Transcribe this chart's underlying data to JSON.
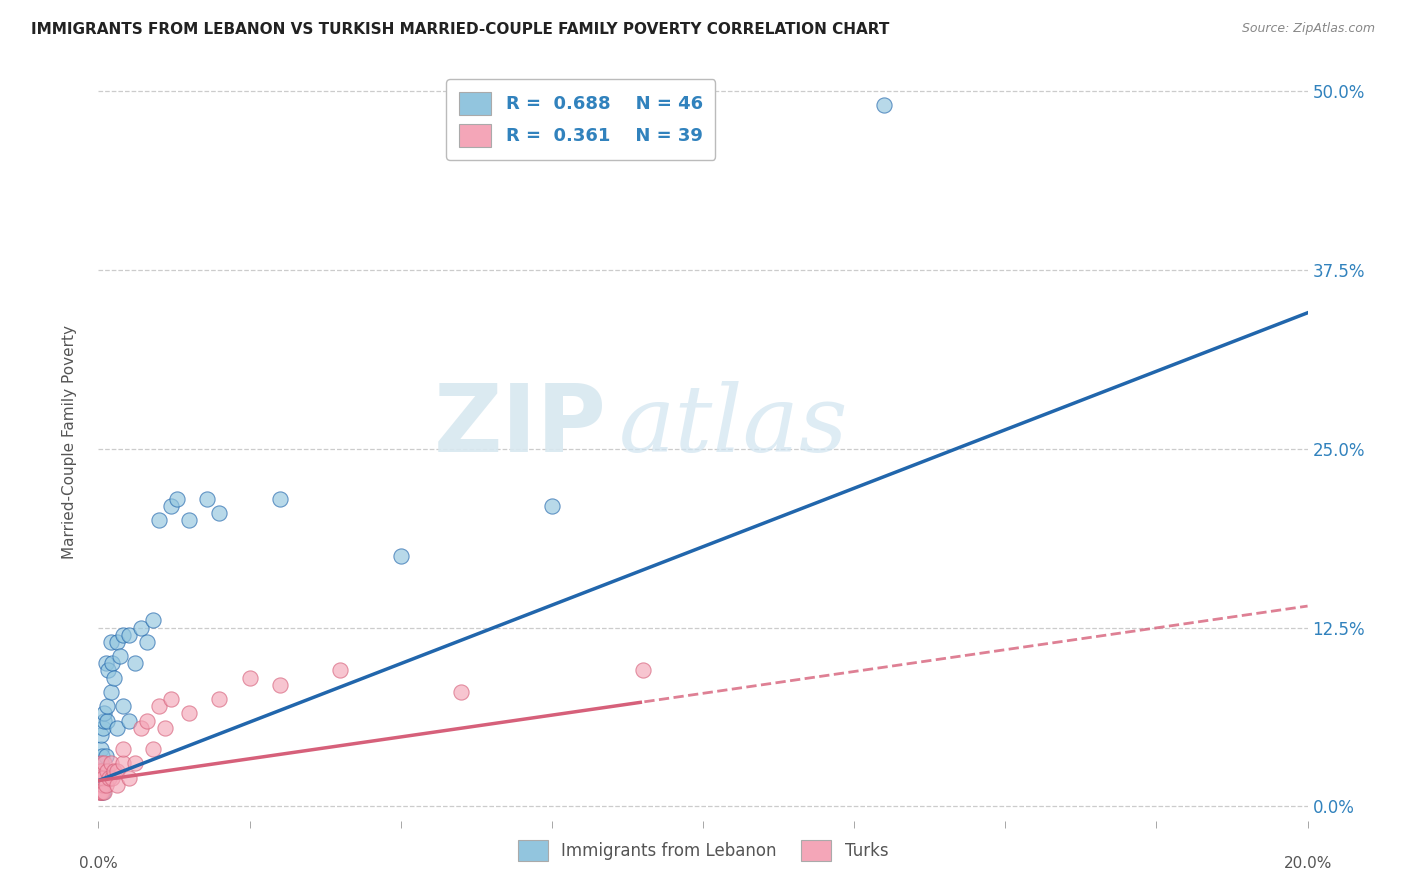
{
  "title": "IMMIGRANTS FROM LEBANON VS TURKISH MARRIED-COUPLE FAMILY POVERTY CORRELATION CHART",
  "source": "Source: ZipAtlas.com",
  "ylabel": "Married-Couple Family Poverty",
  "legend_label1": "Immigrants from Lebanon",
  "legend_label2": "Turks",
  "legend_R1": "R = 0.688",
  "legend_N1": "N = 46",
  "legend_R2": "R = 0.361",
  "legend_N2": "N = 39",
  "watermark_zip": "ZIP",
  "watermark_atlas": "atlas",
  "color_blue": "#92c5de",
  "color_pink": "#f4a6b8",
  "color_blue_line": "#2166ac",
  "color_pink_line": "#d6607a",
  "xmin": 0.0,
  "xmax": 0.2,
  "ymin": -0.01,
  "ymax": 0.52,
  "ytick_vals": [
    0.0,
    0.125,
    0.25,
    0.375,
    0.5
  ],
  "ytick_labels": [
    "0.0%",
    "12.5%",
    "25.0%",
    "37.5%",
    "50.0%"
  ],
  "lebanon_x": [
    0.0002,
    0.0003,
    0.0003,
    0.0004,
    0.0004,
    0.0005,
    0.0005,
    0.0005,
    0.0006,
    0.0006,
    0.0007,
    0.0007,
    0.0008,
    0.0009,
    0.001,
    0.001,
    0.0012,
    0.0013,
    0.0014,
    0.0015,
    0.0016,
    0.002,
    0.002,
    0.0022,
    0.0025,
    0.003,
    0.003,
    0.0035,
    0.004,
    0.004,
    0.005,
    0.005,
    0.006,
    0.007,
    0.008,
    0.009,
    0.01,
    0.012,
    0.013,
    0.015,
    0.018,
    0.02,
    0.03,
    0.05,
    0.075,
    0.13
  ],
  "lebanon_y": [
    0.02,
    0.015,
    0.025,
    0.01,
    0.03,
    0.02,
    0.04,
    0.05,
    0.015,
    0.035,
    0.01,
    0.055,
    0.025,
    0.06,
    0.025,
    0.065,
    0.035,
    0.1,
    0.06,
    0.07,
    0.095,
    0.08,
    0.115,
    0.1,
    0.09,
    0.055,
    0.115,
    0.105,
    0.07,
    0.12,
    0.06,
    0.12,
    0.1,
    0.125,
    0.115,
    0.13,
    0.2,
    0.21,
    0.215,
    0.2,
    0.215,
    0.205,
    0.215,
    0.175,
    0.21,
    0.49
  ],
  "turks_x": [
    0.0001,
    0.0002,
    0.0002,
    0.0003,
    0.0003,
    0.0004,
    0.0004,
    0.0005,
    0.0005,
    0.0006,
    0.0007,
    0.0008,
    0.001,
    0.001,
    0.0012,
    0.0015,
    0.0018,
    0.002,
    0.0022,
    0.0025,
    0.003,
    0.003,
    0.004,
    0.004,
    0.005,
    0.006,
    0.007,
    0.008,
    0.009,
    0.01,
    0.011,
    0.012,
    0.015,
    0.02,
    0.025,
    0.03,
    0.04,
    0.06,
    0.09
  ],
  "turks_y": [
    0.01,
    0.015,
    0.02,
    0.01,
    0.025,
    0.015,
    0.03,
    0.01,
    0.025,
    0.01,
    0.015,
    0.02,
    0.01,
    0.03,
    0.015,
    0.025,
    0.02,
    0.03,
    0.02,
    0.025,
    0.015,
    0.025,
    0.03,
    0.04,
    0.02,
    0.03,
    0.055,
    0.06,
    0.04,
    0.07,
    0.055,
    0.075,
    0.065,
    0.075,
    0.09,
    0.085,
    0.095,
    0.08,
    0.095
  ]
}
